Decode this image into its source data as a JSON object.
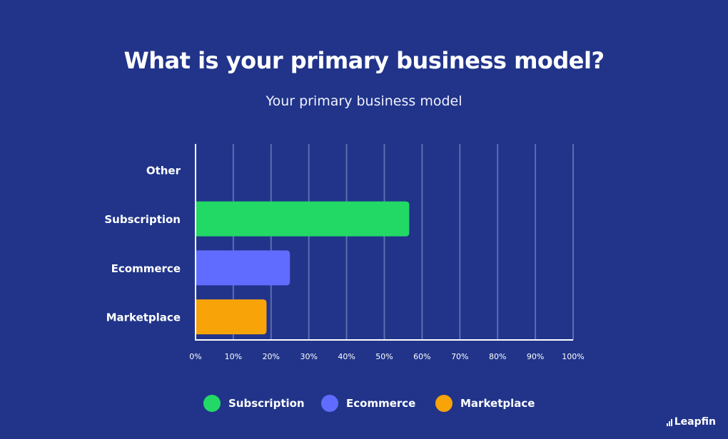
{
  "title": "What is your primary business model?",
  "chart_data": {
    "type": "bar",
    "orientation": "horizontal",
    "title": "Your primary business model",
    "categories": [
      "Other",
      "Subscription",
      "Ecommerce",
      "Marketplace"
    ],
    "values": [
      0,
      56.6,
      25,
      18.8
    ],
    "colors": [
      "#22d965",
      "#22d965",
      "#5f6cff",
      "#f8a307"
    ],
    "xlim": [
      0,
      100
    ],
    "xticks": [
      "0%",
      "10%",
      "20%",
      "30%",
      "40%",
      "50%",
      "60%",
      "70%",
      "80%",
      "90%",
      "100%"
    ],
    "grid": true,
    "legend": {
      "placement": "bottom-center",
      "items": [
        {
          "label": "Subscription",
          "color": "#22d965"
        },
        {
          "label": "Ecommerce",
          "color": "#5f6cff"
        },
        {
          "label": "Marketplace",
          "color": "#f8a307"
        }
      ]
    }
  },
  "brand": {
    "name": "Leapfin",
    "logo_icon": "bar-chart-icon"
  }
}
